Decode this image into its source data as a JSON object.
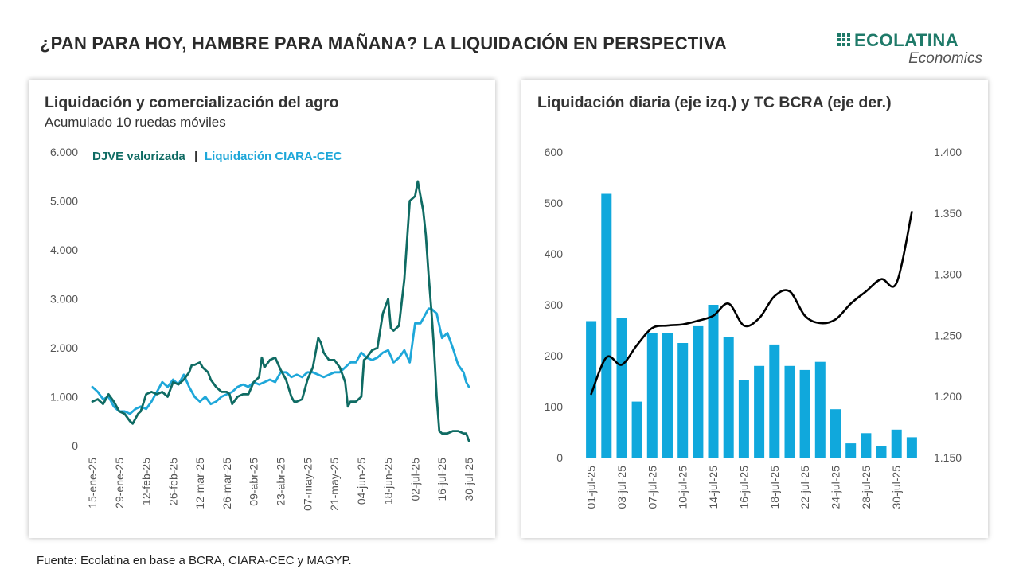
{
  "page": {
    "title": "¿PAN PARA HOY, HAMBRE PARA MAÑANA? LA LIQUIDACIÓN EN PERSPECTIVA",
    "source": "Fuente: Ecolatina en base a BCRA, CIARA-CEC y MAGYP."
  },
  "logo": {
    "name": "ECOLATINA",
    "sub": "Economics"
  },
  "colors": {
    "djve": "#0f6b63",
    "ciara": "#1ea7d9",
    "bars": "#10a8dc",
    "tc_line": "#000000"
  },
  "chart_data": [
    {
      "type": "line",
      "title": "Liquidación y comercialización del agro",
      "subtitle": "Acumulado 10 ruedas móviles",
      "legend": {
        "placement": "top-left",
        "separator": "|"
      },
      "ylim": [
        0,
        6000
      ],
      "yticks": [
        "0",
        "1.000",
        "2.000",
        "3.000",
        "4.000",
        "5.000",
        "6.000"
      ],
      "ytick_values": [
        0,
        1000,
        2000,
        3000,
        4000,
        5000,
        6000
      ],
      "xticks": [
        "15-ene-25",
        "29-ene-25",
        "12-feb-25",
        "26-feb-25",
        "12-mar-25",
        "26-mar-25",
        "09-abr-25",
        "23-abr-25",
        "07-may-25",
        "21-may-25",
        "04-jun-25",
        "18-jun-25",
        "02-jul-25",
        "16-jul-25",
        "30-jul-25"
      ],
      "xtick_index": [
        0,
        10,
        20,
        30,
        40,
        50,
        60,
        70,
        80,
        90,
        100,
        110,
        120,
        130,
        140
      ],
      "grid": false,
      "series": [
        {
          "name": "DJVE valorizada",
          "x_index": [
            0,
            2,
            4,
            6,
            8,
            10,
            12,
            14,
            15,
            17,
            18,
            20,
            22,
            24,
            26,
            28,
            30,
            32,
            34,
            36,
            37,
            38,
            40,
            41,
            42,
            43,
            44,
            46,
            48,
            50,
            51,
            52,
            54,
            56,
            58,
            60,
            62,
            63,
            64,
            66,
            68,
            70,
            72,
            74,
            75,
            76,
            78,
            80,
            82,
            84,
            85,
            86,
            88,
            90,
            92,
            94,
            95,
            96,
            98,
            100,
            101,
            102,
            104,
            106,
            108,
            109,
            110,
            111,
            112,
            114,
            116,
            117,
            118,
            119,
            120,
            121,
            122,
            123,
            124,
            125,
            126,
            127,
            128,
            129,
            130,
            132,
            134,
            136,
            138,
            139,
            140
          ],
          "values": [
            900,
            950,
            850,
            1050,
            900,
            700,
            650,
            500,
            450,
            650,
            700,
            1050,
            1100,
            1050,
            1100,
            1000,
            1300,
            1250,
            1350,
            1500,
            1650,
            1650,
            1700,
            1600,
            1550,
            1500,
            1350,
            1200,
            1100,
            1100,
            1050,
            850,
            1000,
            1050,
            1050,
            1300,
            1400,
            1800,
            1600,
            1750,
            1800,
            1550,
            1350,
            1000,
            900,
            900,
            950,
            1350,
            1600,
            2200,
            2100,
            1900,
            1750,
            1750,
            1600,
            1300,
            800,
            900,
            900,
            1000,
            1750,
            1800,
            1950,
            2000,
            2700,
            2850,
            3000,
            2400,
            2350,
            2450,
            3400,
            4200,
            5000,
            5050,
            5100,
            5400,
            5100,
            4800,
            4300,
            3500,
            2800,
            2000,
            1000,
            300,
            250,
            250,
            300,
            300,
            250,
            250,
            100
          ]
        },
        {
          "name": "Liquidación CIARA-CEC",
          "x_index": [
            0,
            2,
            4,
            6,
            8,
            10,
            12,
            14,
            16,
            18,
            20,
            22,
            24,
            26,
            28,
            30,
            32,
            34,
            36,
            38,
            40,
            42,
            44,
            46,
            48,
            50,
            52,
            54,
            56,
            58,
            60,
            62,
            64,
            66,
            68,
            70,
            72,
            74,
            76,
            78,
            80,
            82,
            84,
            86,
            88,
            90,
            92,
            94,
            96,
            98,
            100,
            102,
            104,
            106,
            108,
            110,
            112,
            114,
            116,
            118,
            120,
            122,
            123,
            124,
            125,
            126,
            128,
            130,
            132,
            134,
            136,
            138,
            139,
            140
          ],
          "values": [
            1200,
            1100,
            950,
            1000,
            800,
            700,
            700,
            650,
            750,
            800,
            750,
            900,
            1100,
            1300,
            1200,
            1350,
            1250,
            1450,
            1200,
            1000,
            900,
            1000,
            850,
            900,
            1000,
            1050,
            1100,
            1200,
            1250,
            1200,
            1300,
            1250,
            1300,
            1350,
            1300,
            1500,
            1500,
            1400,
            1450,
            1400,
            1500,
            1500,
            1450,
            1400,
            1450,
            1500,
            1500,
            1600,
            1700,
            1700,
            1900,
            1800,
            1750,
            1800,
            1900,
            1950,
            1700,
            1800,
            1950,
            1700,
            2500,
            2500,
            2600,
            2700,
            2800,
            2800,
            2700,
            2200,
            2300,
            2000,
            1650,
            1500,
            1300,
            1200
          ]
        }
      ]
    },
    {
      "type": "bar",
      "title": "Liquidación diaria (eje izq.) y TC BCRA (eje der.)",
      "ylim": [
        0,
        600
      ],
      "y2lim": [
        1150,
        1400
      ],
      "yticks": [
        "0",
        "100",
        "200",
        "300",
        "400",
        "500",
        "600"
      ],
      "ytick_values": [
        0,
        100,
        200,
        300,
        400,
        500,
        600
      ],
      "y2ticks": [
        "1.150",
        "1.200",
        "1.250",
        "1.300",
        "1.350",
        "1.400"
      ],
      "y2tick_values": [
        1150,
        1200,
        1250,
        1300,
        1350,
        1400
      ],
      "xticks": [
        "01-jul-25",
        "03-jul-25",
        "07-jul-25",
        "10-jul-25",
        "14-jul-25",
        "16-jul-25",
        "18-jul-25",
        "22-jul-25",
        "24-jul-25",
        "28-jul-25",
        "30-jul-25"
      ],
      "xtick_index": [
        0,
        2,
        4,
        6,
        8,
        10,
        12,
        14,
        16,
        18,
        20
      ],
      "grid": false,
      "bar_values": [
        268,
        518,
        275,
        110,
        245,
        245,
        225,
        258,
        300,
        237,
        153,
        180,
        222,
        180,
        172,
        188,
        95,
        28,
        48,
        22,
        55,
        40
      ],
      "tc_values": [
        1202,
        1232,
        1226,
        1242,
        1256,
        1258,
        1259,
        1262,
        1266,
        1276,
        1258,
        1264,
        1282,
        1286,
        1266,
        1260,
        1263,
        1276,
        1286,
        1296,
        1293,
        1351
      ]
    }
  ]
}
